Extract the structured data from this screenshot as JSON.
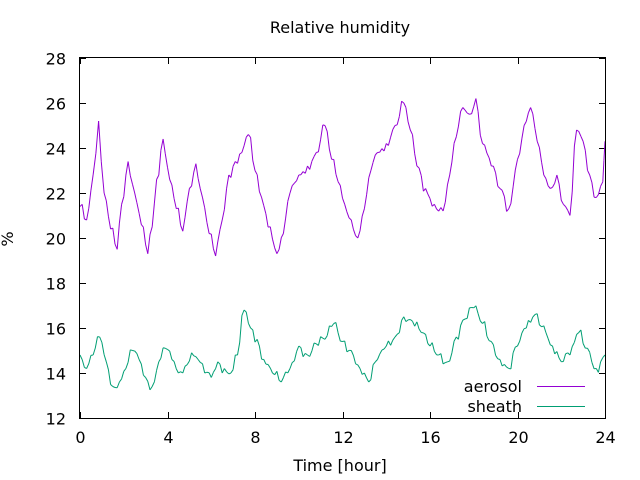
{
  "chart_data": {
    "type": "line",
    "title": "Relative humidity",
    "xlabel": "Time [hour]",
    "ylabel": "%",
    "xlim": [
      0,
      24
    ],
    "ylim": [
      12,
      28
    ],
    "xticks": [
      0,
      4,
      8,
      12,
      16,
      20,
      24
    ],
    "xtick_labels": [
      "0",
      "4",
      "8",
      "12",
      "16",
      "20",
      "24"
    ],
    "yticks": [
      12,
      14,
      16,
      18,
      20,
      22,
      24,
      26,
      28
    ],
    "ytick_labels": [
      "12",
      "14",
      "16",
      "18",
      "20",
      "22",
      "24",
      "26",
      "28"
    ],
    "grid": false,
    "legend_position": "bottom-right",
    "series": [
      {
        "name": "aerosol",
        "color": "#9400d3",
        "x": [
          0,
          0.3,
          0.6,
          0.85,
          1.1,
          1.4,
          1.7,
          1.9,
          2.2,
          2.5,
          2.8,
          3.1,
          3.3,
          3.5,
          3.8,
          4.1,
          4.4,
          4.7,
          5,
          5.3,
          5.6,
          5.9,
          6.2,
          6.5,
          6.8,
          7.1,
          7.4,
          7.7,
          8,
          8.3,
          8.7,
          9.0,
          9.3,
          9.6,
          10.0,
          10.4,
          10.8,
          11.2,
          11.5,
          11.8,
          12.1,
          12.4,
          12.7,
          13.0,
          13.3,
          13.6,
          14.0,
          14.4,
          14.8,
          15.1,
          15.4,
          15.8,
          16.2,
          16.6,
          16.9,
          17.2,
          17.5,
          17.8,
          18.1,
          18.4,
          18.8,
          19.2,
          19.6,
          20.0,
          20.3,
          20.6,
          20.9,
          21.2,
          21.5,
          21.8,
          22.1,
          22.4,
          22.7,
          23.0,
          23.3,
          23.6,
          23.9,
          24
        ],
        "y": [
          21.4,
          20.8,
          22.8,
          25.2,
          22.0,
          20.4,
          19.5,
          21.5,
          23.4,
          22.0,
          20.6,
          19.3,
          20.5,
          22.6,
          24.4,
          22.6,
          21.3,
          20.3,
          22.2,
          23.3,
          21.8,
          20.2,
          19.2,
          20.8,
          22.8,
          23.4,
          23.8,
          24.6,
          23.0,
          21.8,
          20.5,
          19.3,
          20.2,
          22.0,
          22.8,
          23.2,
          23.8,
          25.0,
          23.5,
          22.5,
          21.5,
          20.8,
          20.0,
          21.3,
          23.0,
          23.8,
          24.2,
          25.0,
          26.0,
          24.8,
          23.2,
          22.2,
          21.5,
          21.2,
          22.8,
          24.5,
          25.8,
          25.5,
          26.2,
          24.2,
          23.2,
          22.2,
          21.3,
          23.5,
          25.0,
          25.8,
          24.3,
          22.8,
          22.2,
          22.8,
          21.5,
          21.0,
          24.8,
          24.3,
          22.8,
          21.8,
          22.5,
          24.3
        ]
      },
      {
        "name": "sheath",
        "color": "#009e73",
        "x": [
          0,
          0.3,
          0.6,
          0.9,
          1.2,
          1.5,
          1.8,
          2.1,
          2.4,
          2.7,
          3.0,
          3.3,
          3.6,
          3.9,
          4.2,
          4.5,
          4.8,
          5.1,
          5.4,
          5.7,
          6.0,
          6.3,
          6.6,
          6.9,
          7.2,
          7.5,
          7.8,
          8.1,
          8.4,
          8.8,
          9.2,
          9.6,
          10.0,
          10.4,
          10.8,
          11.2,
          11.6,
          12.0,
          12.4,
          12.8,
          13.2,
          13.6,
          14.0,
          14.4,
          14.8,
          15.2,
          15.6,
          16.0,
          16.4,
          16.8,
          17.2,
          17.6,
          18.0,
          18.4,
          18.8,
          19.2,
          19.6,
          20.0,
          20.4,
          20.8,
          21.2,
          21.6,
          22.0,
          22.4,
          22.8,
          23.2,
          23.6,
          24
        ],
        "y": [
          14.8,
          14.2,
          14.8,
          15.6,
          14.5,
          13.4,
          13.6,
          14.2,
          15.0,
          14.6,
          13.8,
          13.4,
          14.5,
          15.1,
          14.6,
          14.0,
          14.3,
          14.9,
          14.6,
          14.0,
          13.8,
          14.5,
          14.2,
          14.0,
          14.8,
          16.8,
          16.0,
          15.5,
          14.6,
          14.0,
          13.6,
          14.2,
          15.2,
          14.8,
          15.3,
          15.5,
          16.2,
          15.4,
          15.0,
          14.2,
          13.6,
          14.6,
          15.2,
          15.6,
          16.5,
          16.3,
          15.8,
          15.2,
          14.8,
          14.5,
          15.6,
          16.4,
          16.9,
          16.2,
          15.4,
          14.6,
          14.2,
          15.2,
          16.0,
          16.6,
          16.1,
          15.2,
          14.5,
          14.8,
          15.8,
          15.1,
          14.2,
          14.8
        ]
      }
    ]
  }
}
